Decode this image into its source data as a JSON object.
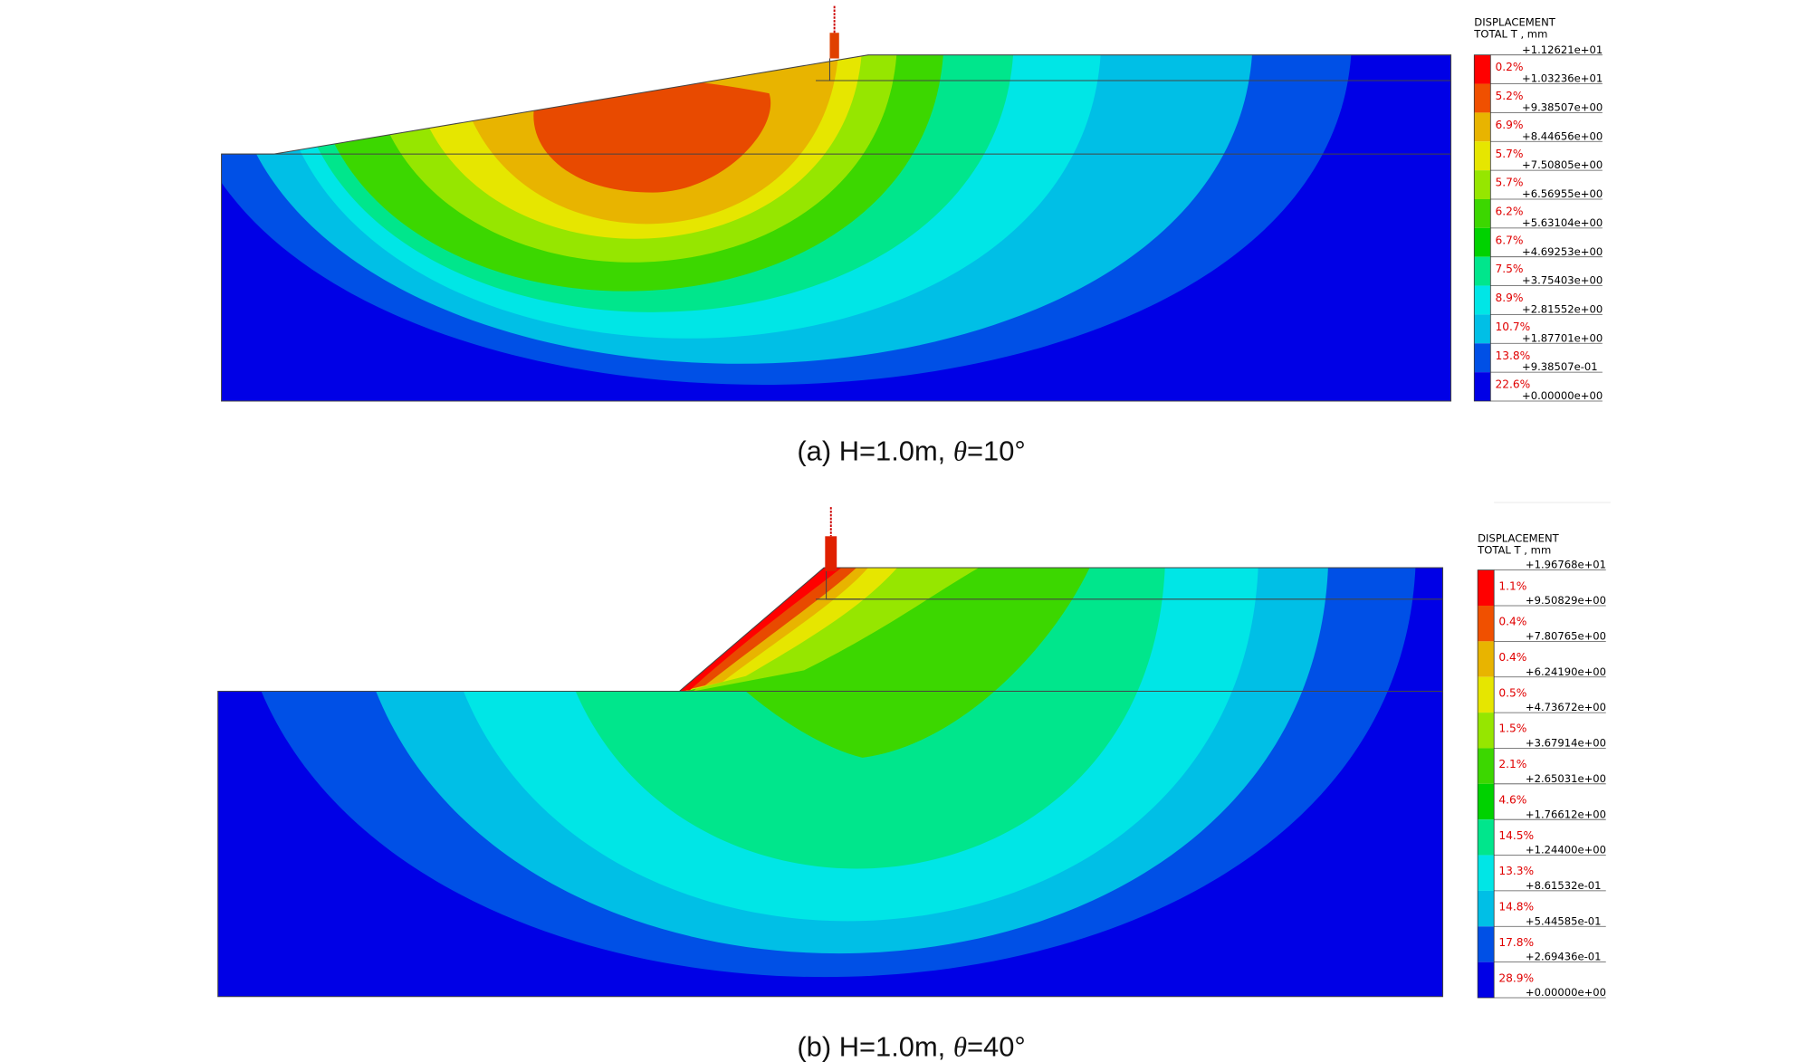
{
  "panels": [
    {
      "caption": {
        "label": "(a) H=1.0m, ",
        "symbol": "θ",
        "value": "=10°"
      },
      "legend": {
        "title": [
          "DISPLACEMENT",
          "TOTAL T , mm"
        ],
        "values": [
          "+1.12621e+01",
          "+1.03236e+01",
          "+9.38507e+00",
          "+8.44656e+00",
          "+7.50805e+00",
          "+6.56955e+00",
          "+5.63104e+00",
          "+4.69253e+00",
          "+3.75403e+00",
          "+2.81552e+00",
          "+1.87701e+00",
          "+9.38507e-01",
          "+0.00000e+00"
        ],
        "percents": [
          "0.2%",
          "5.2%",
          "6.9%",
          "5.7%",
          "5.7%",
          "6.2%",
          "6.7%",
          "7.5%",
          "8.9%",
          "10.7%",
          "13.8%",
          "22.6%"
        ]
      }
    },
    {
      "caption": {
        "label": "(b) H=1.0m, ",
        "symbol": "θ",
        "value": "=40°"
      },
      "legend": {
        "title": [
          "DISPLACEMENT",
          "TOTAL T , mm"
        ],
        "values": [
          "+1.96768e+01",
          "+9.50829e+00",
          "+7.80765e+00",
          "+6.24190e+00",
          "+4.73672e+00",
          "+3.67914e+00",
          "+2.65031e+00",
          "+1.76612e+00",
          "+1.24400e+00",
          "+8.61532e-01",
          "+5.44585e-01",
          "+2.69436e-01",
          "+0.00000e+00"
        ],
        "percents": [
          "1.1%",
          "0.4%",
          "0.4%",
          "0.5%",
          "1.5%",
          "2.1%",
          "4.6%",
          "14.5%",
          "13.3%",
          "14.8%",
          "17.8%",
          "28.9%"
        ]
      }
    }
  ]
}
